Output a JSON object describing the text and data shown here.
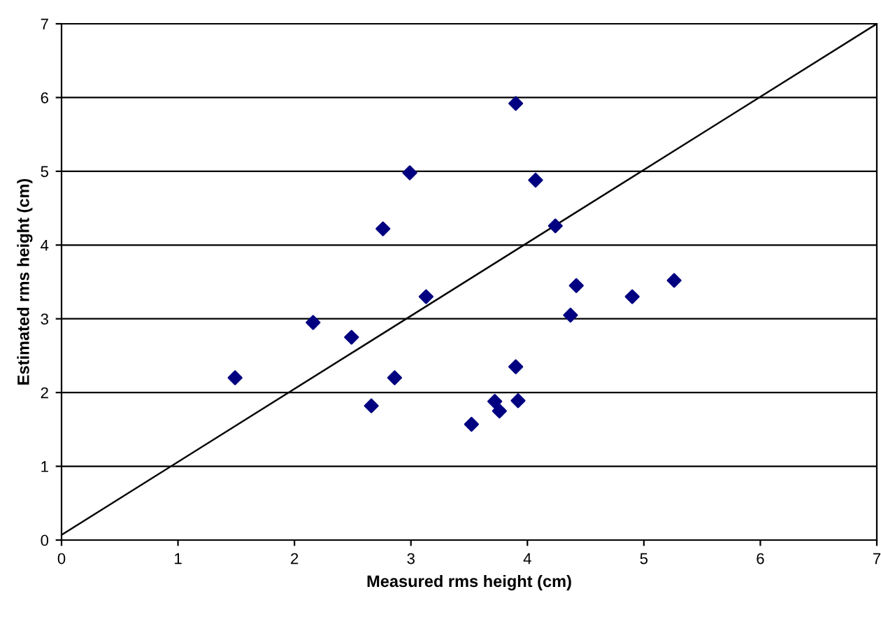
{
  "chart_data": {
    "type": "scatter",
    "xlabel": "Measured rms height (cm)",
    "ylabel": "Estimated rms height (cm)",
    "xlim": [
      0,
      7
    ],
    "ylim": [
      0,
      7
    ],
    "xticks": [
      0,
      1,
      2,
      3,
      4,
      5,
      6,
      7
    ],
    "yticks": [
      0,
      1,
      2,
      3,
      4,
      5,
      6,
      7
    ],
    "grid": "y",
    "series": [
      {
        "marker": "diamond",
        "color": "#000080",
        "x": [
          1.49,
          2.16,
          2.49,
          2.66,
          2.76,
          2.86,
          2.99,
          3.13,
          3.52,
          3.72,
          3.76,
          3.9,
          3.9,
          3.92,
          4.07,
          4.24,
          4.37,
          4.42,
          4.9,
          5.26
        ],
        "values": [
          2.2,
          2.95,
          2.75,
          1.82,
          4.22,
          2.2,
          4.98,
          3.3,
          1.57,
          1.88,
          1.75,
          5.92,
          2.35,
          1.89,
          4.88,
          4.26,
          3.05,
          3.45,
          3.3,
          3.52
        ]
      },
      {
        "type": "line",
        "marker": "none",
        "color": "#000000",
        "x": [
          0,
          7
        ],
        "values": [
          0.07,
          7
        ]
      }
    ]
  }
}
